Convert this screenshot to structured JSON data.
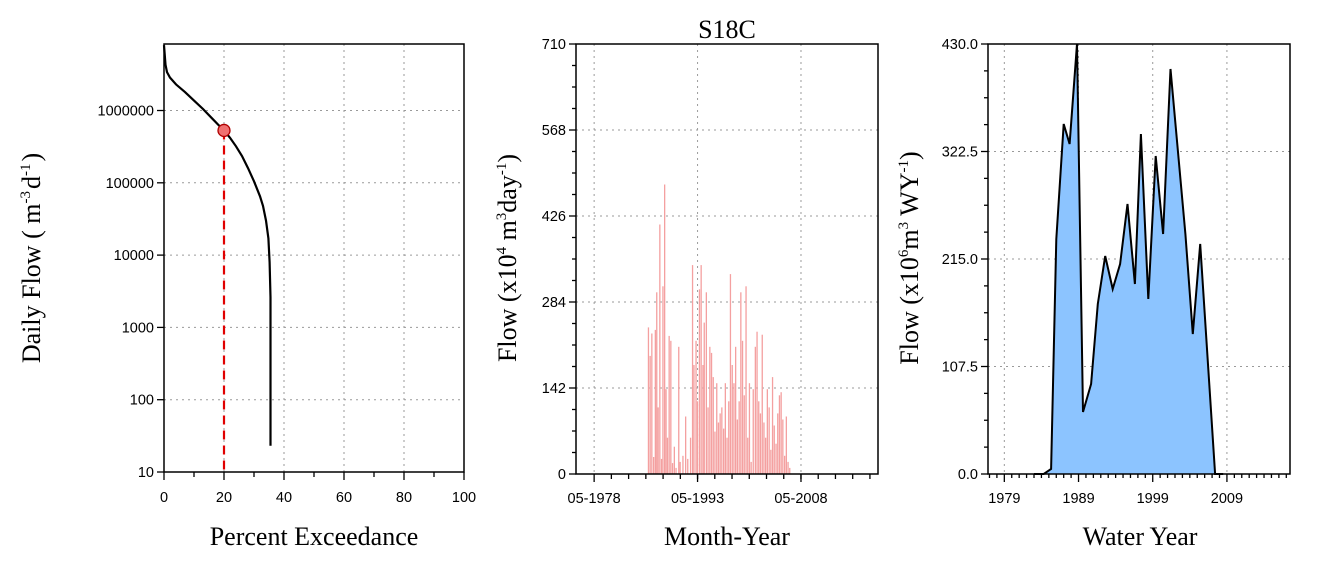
{
  "figure_title": "S18C",
  "chart_data": [
    {
      "type": "line",
      "name": "flow-duration",
      "title": "",
      "xlabel": "Percent Exceedance",
      "ylabel_parts": [
        "Daily Flow ( m",
        "-3",
        "d",
        "-1",
        ")"
      ],
      "xlim": [
        0,
        100
      ],
      "ylim_log10": [
        1,
        6.92
      ],
      "y_scale": "log",
      "x_ticks": [
        "0",
        "20",
        "40",
        "60",
        "80",
        "100"
      ],
      "y_ticks": [
        {
          "value": 10,
          "label": "10"
        },
        {
          "value": 100,
          "label": "100"
        },
        {
          "value": 1000,
          "label": "1000"
        },
        {
          "value": 10000,
          "label": "10000"
        },
        {
          "value": 100000,
          "label": "100000"
        },
        {
          "value": 1000000,
          "label": "1000000"
        }
      ],
      "grid": true,
      "line_color": "#000000",
      "curve": [
        [
          0,
          8000000
        ],
        [
          0.5,
          4300000
        ],
        [
          1,
          3400000
        ],
        [
          2,
          2850000
        ],
        [
          4,
          2300000
        ],
        [
          7,
          1800000
        ],
        [
          10,
          1370000
        ],
        [
          13,
          1050000
        ],
        [
          16,
          780000
        ],
        [
          18,
          640000
        ],
        [
          20,
          530000
        ],
        [
          22,
          420000
        ],
        [
          24,
          320000
        ],
        [
          26,
          235000
        ],
        [
          28,
          160000
        ],
        [
          30,
          105000
        ],
        [
          32,
          65000
        ],
        [
          33,
          48000
        ],
        [
          34,
          30000
        ],
        [
          34.8,
          17000
        ],
        [
          35.2,
          8000
        ],
        [
          35.5,
          2600
        ],
        [
          35.5,
          23
        ]
      ],
      "marker": {
        "x": 20,
        "y": 530000,
        "fill": "#f07070",
        "stroke": "#b00000"
      },
      "marker_line_color": "#e00000"
    },
    {
      "type": "bar",
      "name": "monthly-flow",
      "title": "",
      "xlabel": "Month-Year",
      "ylabel_parts": [
        "Flow (x10",
        "4",
        " m",
        "3",
        "day",
        "-1",
        ")"
      ],
      "x_range_years": [
        1975.7,
        2019.5
      ],
      "ylim": [
        0,
        710
      ],
      "x_ticks": [
        {
          "year": 1978.33,
          "label": "05-1978"
        },
        {
          "year": 1993.33,
          "label": "05-1993"
        },
        {
          "year": 2008.33,
          "label": "05-2008"
        }
      ],
      "y_ticks": [
        "0",
        "142",
        "284",
        "426",
        "568",
        "710"
      ],
      "grid": true,
      "bar_color": "#f4a0a0",
      "values": [
        [
          1986.2,
          242
        ],
        [
          1986.45,
          195
        ],
        [
          1986.7,
          232
        ],
        [
          1986.95,
          28
        ],
        [
          1987.2,
          238
        ],
        [
          1987.4,
          300
        ],
        [
          1987.6,
          110
        ],
        [
          1987.85,
          412
        ],
        [
          1988.1,
          25
        ],
        [
          1988.3,
          310
        ],
        [
          1988.55,
          478
        ],
        [
          1988.75,
          140
        ],
        [
          1988.95,
          60
        ],
        [
          1989.2,
          228
        ],
        [
          1989.45,
          220
        ],
        [
          1989.7,
          18
        ],
        [
          1989.95,
          45
        ],
        [
          1990.2,
          10
        ],
        [
          1990.6,
          210
        ],
        [
          1990.8,
          20
        ],
        [
          1991.2,
          30
        ],
        [
          1991.6,
          95
        ],
        [
          1991.9,
          25
        ],
        [
          1992.3,
          60
        ],
        [
          1992.6,
          345
        ],
        [
          1992.8,
          180
        ],
        [
          1993.1,
          220
        ],
        [
          1993.3,
          120
        ],
        [
          1993.6,
          305
        ],
        [
          1993.85,
          345
        ],
        [
          1994.1,
          180
        ],
        [
          1994.3,
          250
        ],
        [
          1994.6,
          300
        ],
        [
          1994.85,
          110
        ],
        [
          1995.1,
          210
        ],
        [
          1995.35,
          200
        ],
        [
          1995.6,
          160
        ],
        [
          1995.85,
          70
        ],
        [
          1996.1,
          150
        ],
        [
          1996.35,
          85
        ],
        [
          1996.6,
          100
        ],
        [
          1996.85,
          110
        ],
        [
          1997.1,
          75
        ],
        [
          1997.35,
          150
        ],
        [
          1997.6,
          60
        ],
        [
          1997.85,
          120
        ],
        [
          1998.1,
          330
        ],
        [
          1998.35,
          180
        ],
        [
          1998.6,
          150
        ],
        [
          1998.85,
          210
        ],
        [
          1999.1,
          90
        ],
        [
          1999.35,
          120
        ],
        [
          1999.6,
          300
        ],
        [
          1999.85,
          220
        ],
        [
          2000.1,
          130
        ],
        [
          2000.35,
          310
        ],
        [
          2000.6,
          60
        ],
        [
          2000.85,
          150
        ],
        [
          2001.1,
          20
        ],
        [
          2001.4,
          140
        ],
        [
          2001.7,
          210
        ],
        [
          2001.95,
          235
        ],
        [
          2002.2,
          120
        ],
        [
          2002.45,
          100
        ],
        [
          2002.7,
          230
        ],
        [
          2002.95,
          85
        ],
        [
          2003.2,
          60
        ],
        [
          2003.45,
          140
        ],
        [
          2003.7,
          110
        ],
        [
          2003.95,
          40
        ],
        [
          2004.2,
          160
        ],
        [
          2004.45,
          80
        ],
        [
          2004.7,
          50
        ],
        [
          2004.95,
          100
        ],
        [
          2005.2,
          130
        ],
        [
          2005.45,
          135
        ],
        [
          2005.7,
          90
        ],
        [
          2005.95,
          30
        ],
        [
          2006.2,
          95
        ],
        [
          2006.45,
          20
        ],
        [
          2006.7,
          10
        ]
      ]
    },
    {
      "type": "area",
      "name": "annual-flow",
      "title": "",
      "xlabel": "Water Year",
      "ylabel_parts": [
        "Flow (x10",
        "6",
        "m",
        "3",
        " WY",
        "-1",
        ")"
      ],
      "xlim": [
        1976.8,
        2017.5
      ],
      "ylim": [
        0,
        430
      ],
      "x_ticks": [
        "1979",
        "1989",
        "1999",
        "2009"
      ],
      "y_ticks": [
        "0.0",
        "107.5",
        "215.0",
        "322.5",
        "430.0"
      ],
      "grid": true,
      "fill_color": "#8cc4ff",
      "line_color": "#000000",
      "points": [
        [
          1983,
          0
        ],
        [
          1984.3,
          0
        ],
        [
          1985.3,
          5
        ],
        [
          1986,
          235
        ],
        [
          1987,
          350
        ],
        [
          1987.8,
          330
        ],
        [
          1988.8,
          430
        ],
        [
          1989.6,
          62
        ],
        [
          1990.7,
          90
        ],
        [
          1991.6,
          170
        ],
        [
          1992.6,
          218
        ],
        [
          1993.6,
          185
        ],
        [
          1994.6,
          210
        ],
        [
          1995.6,
          270
        ],
        [
          1996.6,
          190
        ],
        [
          1997.4,
          340
        ],
        [
          1998.4,
          175
        ],
        [
          1999.4,
          318
        ],
        [
          2000.4,
          240
        ],
        [
          2001.4,
          405
        ],
        [
          2003.4,
          240
        ],
        [
          2004.4,
          140
        ],
        [
          2005.4,
          230
        ],
        [
          2007.4,
          0
        ],
        [
          2008.5,
          0
        ]
      ]
    }
  ]
}
